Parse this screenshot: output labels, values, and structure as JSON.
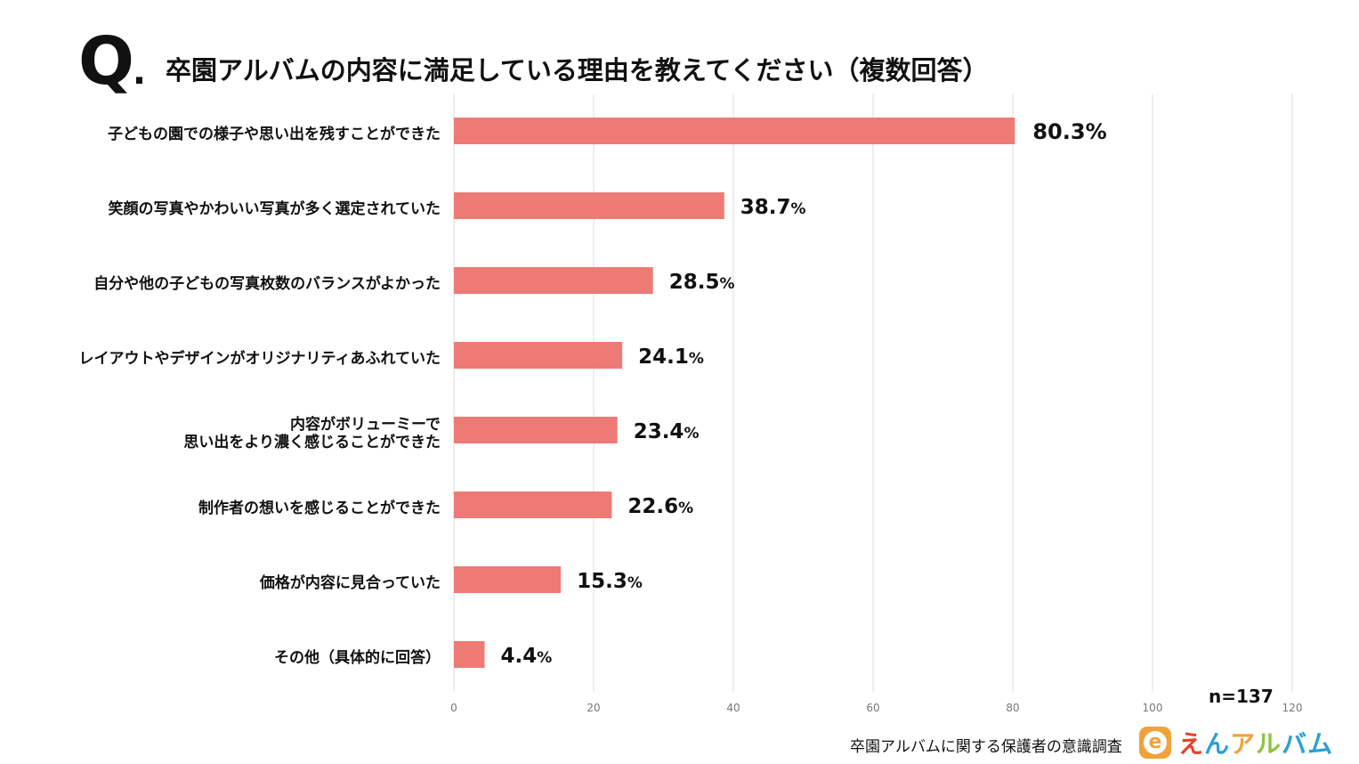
{
  "header": {
    "q_mark": "Q",
    "q_dot": ".",
    "title": "卒園アルバムの内容に満足している理由を教えてください（複数回答）"
  },
  "chart_data": {
    "type": "bar",
    "orientation": "horizontal",
    "title": "卒園アルバムの内容に満足している理由を教えてください（複数回答）",
    "categories": [
      "子どもの園での様子や思い出を残すことができた",
      "笑顔の写真やかわいい写真が多く選定されていた",
      "自分や他の子どもの写真枚数のバランスがよかった",
      "レイアウトやデザインがオリジナリティあふれていた",
      "内容がボリューミーで\n思い出をより濃く感じることができた",
      "制作者の想いを感じることができた",
      "価格が内容に見合っていた",
      "その他（具体的に回答）"
    ],
    "values": [
      80.3,
      38.7,
      28.5,
      24.1,
      23.4,
      22.6,
      15.3,
      4.4
    ],
    "value_labels": [
      "80.3",
      "38.7",
      "28.5",
      "24.1",
      "23.4",
      "22.6",
      "15.3",
      "4.4"
    ],
    "value_suffix": "%",
    "xlim": [
      0,
      120
    ],
    "xticks": [
      "0",
      "20",
      "40",
      "60",
      "80",
      "100",
      "120"
    ],
    "grid": true,
    "bar_color": "#ee7a75",
    "sample_size": "n=137"
  },
  "footer": {
    "survey_title": "卒園アルバムに関する保護者の意識調査",
    "logo_badge": "e",
    "logo_chars": [
      {
        "ch": "え",
        "color": "#e8412c"
      },
      {
        "ch": "ん",
        "color": "#2a9fd8"
      },
      {
        "ch": "ア",
        "color": "#f0a23a"
      },
      {
        "ch": "ル",
        "color": "#8bc53f"
      },
      {
        "ch": "バ",
        "color": "#2a9fd8"
      },
      {
        "ch": "ム",
        "color": "#2a9fd8"
      }
    ]
  }
}
